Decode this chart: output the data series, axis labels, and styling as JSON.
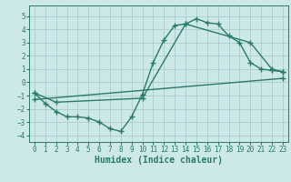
{
  "bg_color": "#cce8e8",
  "grid_color": "#aacccc",
  "line_color": "#2a7a6a",
  "marker": "+",
  "line_width": 1.0,
  "marker_size": 4,
  "marker_edge_width": 1.0,
  "xlabel": "Humidex (Indice chaleur)",
  "xlabel_fontsize": 7,
  "xlim": [
    -0.5,
    23.5
  ],
  "ylim": [
    -4.5,
    5.8
  ],
  "yticks": [
    -4,
    -3,
    -2,
    -1,
    0,
    1,
    2,
    3,
    4,
    5
  ],
  "xticks": [
    0,
    1,
    2,
    3,
    4,
    5,
    6,
    7,
    8,
    9,
    10,
    11,
    12,
    13,
    14,
    15,
    16,
    17,
    18,
    19,
    20,
    21,
    22,
    23
  ],
  "tick_fontsize": 5.5,
  "line1_x": [
    0,
    1,
    2,
    3,
    4,
    5,
    6,
    7,
    8,
    9,
    10,
    11,
    12,
    13,
    14,
    15,
    16,
    17,
    18,
    19,
    20,
    21,
    22,
    23
  ],
  "line1_y": [
    -0.8,
    -1.6,
    -2.2,
    -2.6,
    -2.6,
    -2.7,
    -3.0,
    -3.5,
    -3.7,
    -2.6,
    -0.9,
    1.5,
    3.2,
    4.3,
    4.4,
    4.8,
    4.5,
    4.4,
    3.5,
    3.0,
    1.5,
    1.0,
    0.9,
    0.8
  ],
  "line2_x": [
    0,
    2,
    10,
    14,
    20,
    22,
    23
  ],
  "line2_y": [
    -0.8,
    -1.5,
    -1.2,
    4.4,
    3.0,
    1.0,
    0.8
  ],
  "line3_x": [
    0,
    23
  ],
  "line3_y": [
    -1.3,
    0.3
  ]
}
